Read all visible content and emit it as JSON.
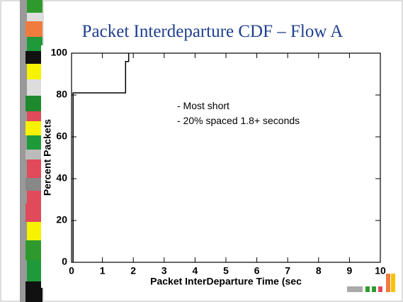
{
  "chart_data": {
    "type": "line",
    "title": "Packet Interdeparture CDF – Flow A",
    "xlabel": "Packet InterDeparture Time (sec",
    "ylabel": "Percent Packets",
    "annotations": [
      "- Most short",
      "- 20% spaced 1.8+ seconds"
    ],
    "series": [
      {
        "name": "Flow A",
        "color": "#000000",
        "x": [
          0.05,
          0.05,
          1.75,
          1.75,
          1.85,
          1.85
        ],
        "values": [
          0,
          81,
          81,
          96,
          96,
          100
        ]
      }
    ],
    "xlim": [
      0,
      10
    ],
    "xticks": [
      0,
      1,
      2,
      3,
      4,
      5,
      6,
      7,
      8,
      9,
      10
    ],
    "ylim": [
      0,
      100
    ],
    "yticks": [
      0,
      20,
      40,
      60,
      80,
      100
    ]
  }
}
